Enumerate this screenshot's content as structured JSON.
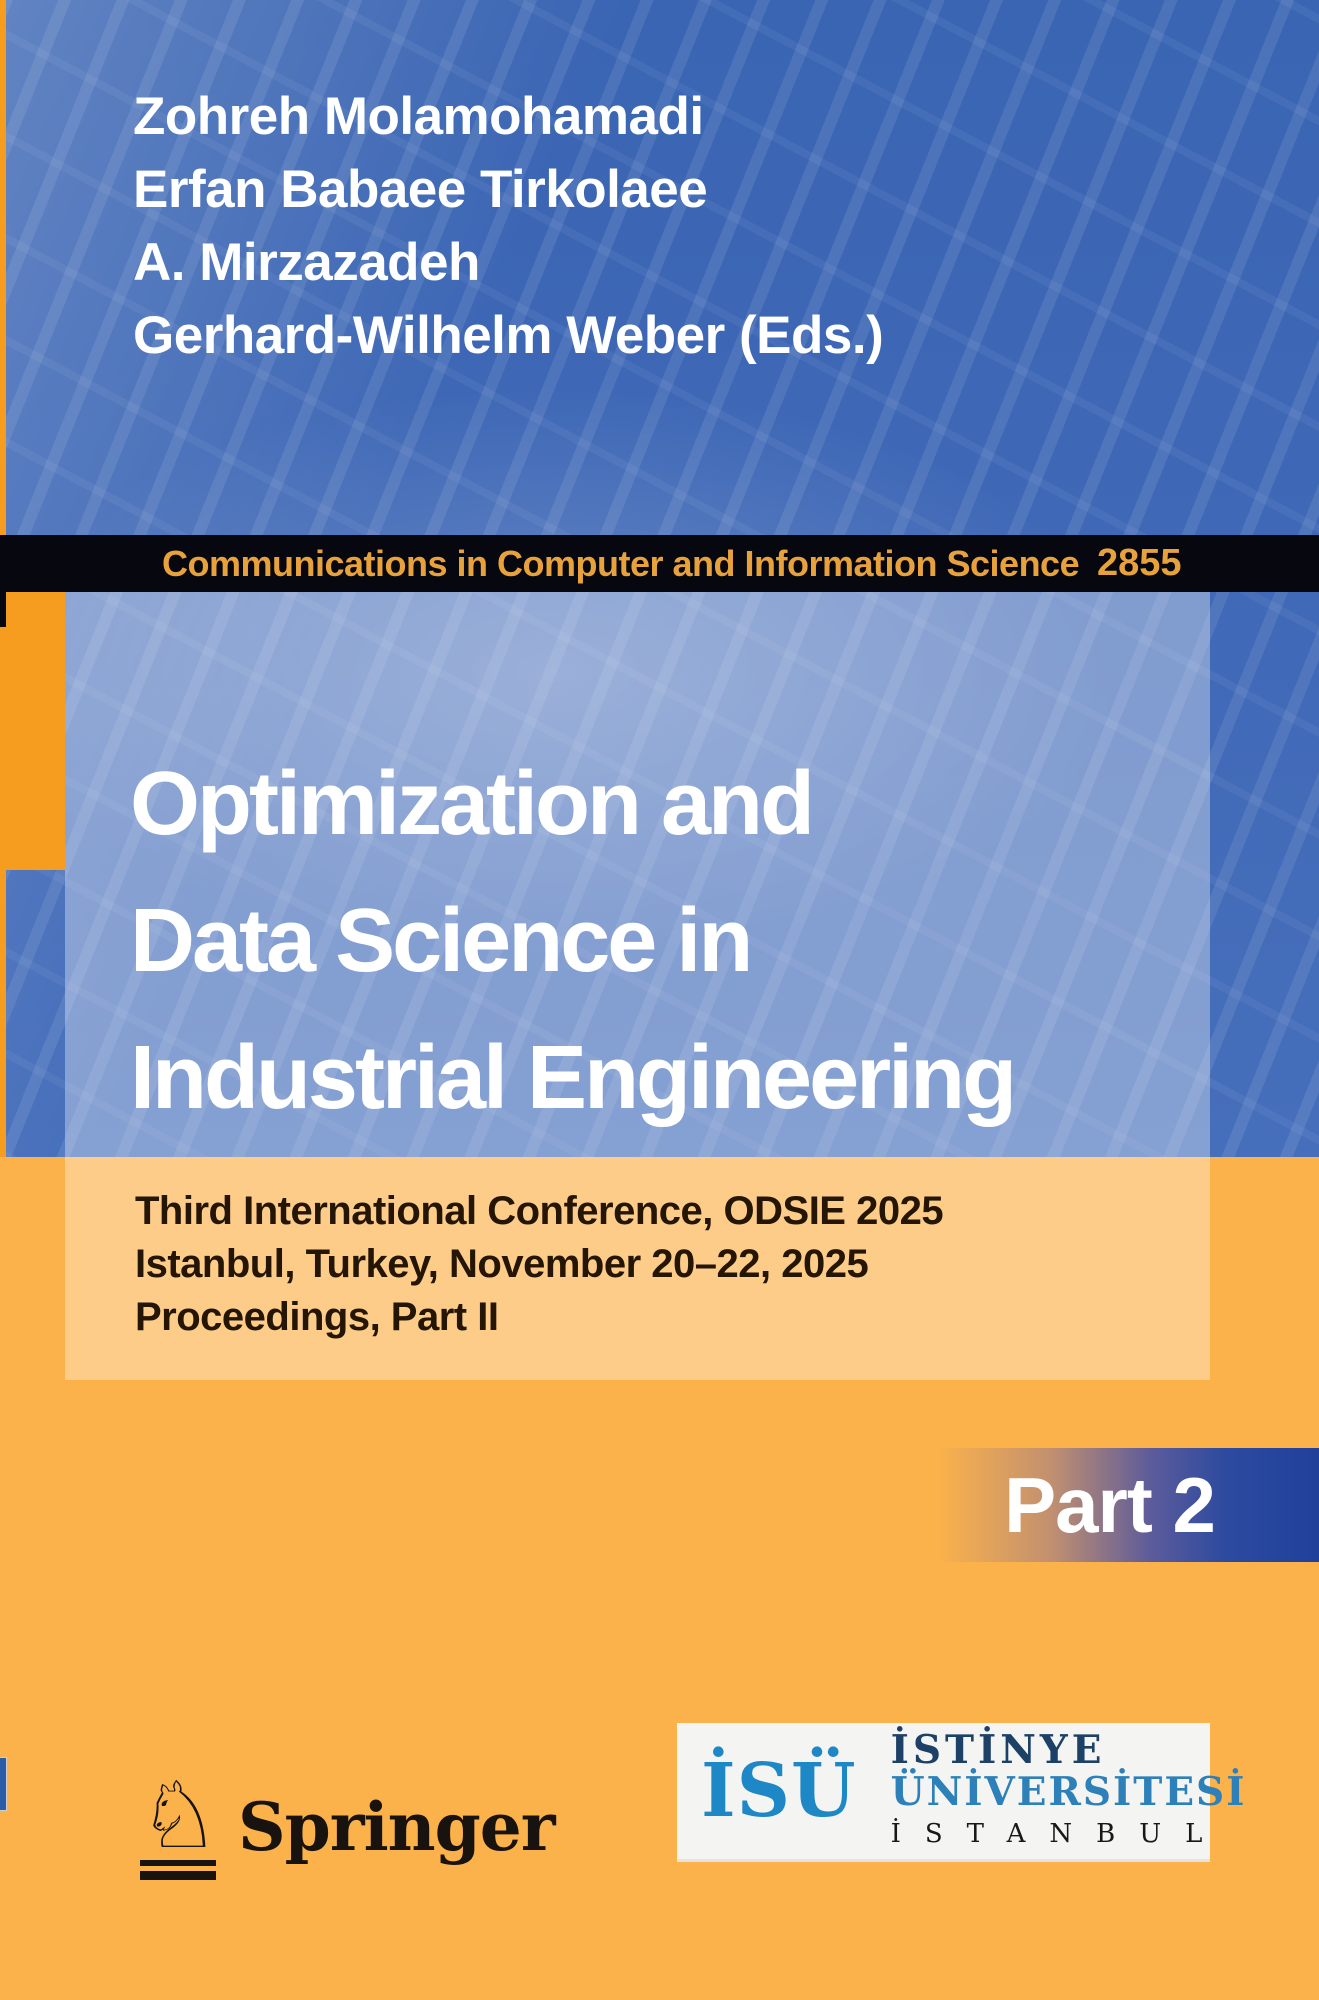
{
  "cover": {
    "authors": [
      "Zohreh Molamohamadi",
      "Erfan Babaee Tirkolaee",
      "A. Mirzazadeh",
      "Gerhard-Wilhelm Weber (Eds.)"
    ],
    "series": {
      "name": "Communications in Computer and Information Science",
      "volume": "2855"
    },
    "title_lines": [
      "Optimization and",
      "Data Science in",
      "Industrial Engineering"
    ],
    "subtitle_lines": [
      "Third International Conference, ODSIE 2025",
      "Istanbul, Turkey, November 20–22, 2025",
      "Proceedings, Part II"
    ],
    "part_badge": "Part 2",
    "publisher": {
      "name": "Springer",
      "horse_icon_glyph": "♘"
    },
    "university": {
      "monogram": "İSÜ",
      "line1": "İSTİNYE",
      "line2": "ÜNİVERSİTESİ",
      "line3": "İSTANBUL"
    },
    "colors": {
      "background_blue": "#3f68b6",
      "background_orange": "#fbb24b",
      "accent_orange": "#f69d1f",
      "series_band": "#07070f",
      "series_text": "#e8a23c",
      "part_band_blue": "#20409a",
      "isu_blue": "#1e87c5",
      "isu_navy": "#1c4066",
      "springer_ink": "#191310"
    }
  }
}
